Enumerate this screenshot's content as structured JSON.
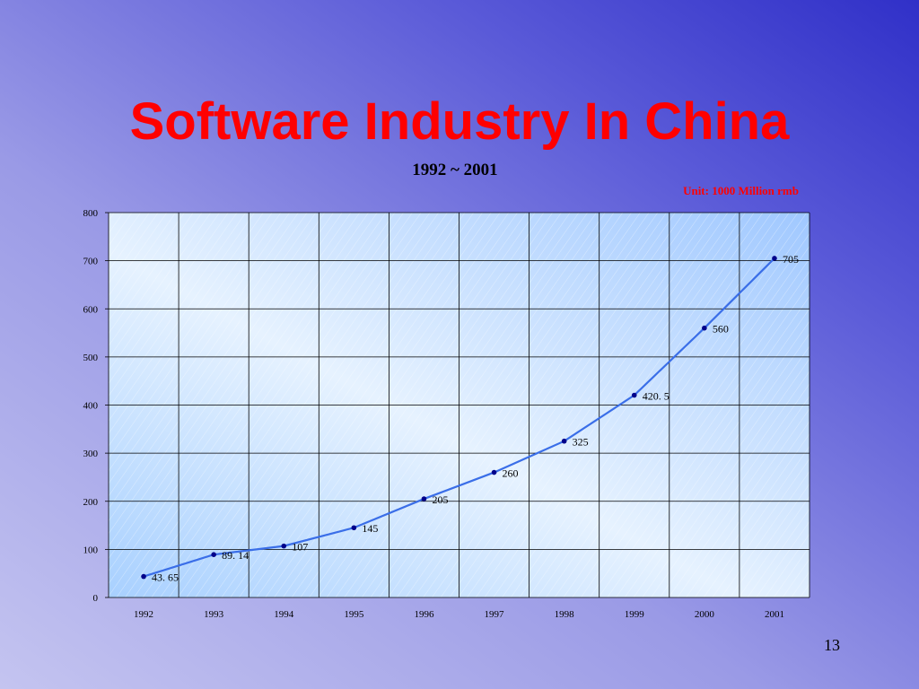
{
  "chart_data": {
    "type": "line",
    "title": "Software Industry In China",
    "subtitle": "1992 ~ 2001",
    "annotation": "Unit: 1000 Million  rmb",
    "page_number": "13",
    "categories": [
      "1992",
      "1993",
      "1994",
      "1995",
      "1996",
      "1997",
      "1998",
      "1999",
      "2000",
      "2001"
    ],
    "values": [
      43.65,
      89.14,
      107,
      145,
      205,
      260,
      325,
      420.5,
      560,
      705
    ],
    "value_labels": [
      "43. 65",
      "89. 14",
      "107",
      "145",
      "205",
      "260",
      "325",
      "420. 5",
      "560",
      "705"
    ],
    "color": "#3a6ee8",
    "marker_color": "#00008b",
    "ylim": [
      0,
      800
    ],
    "yticks": [
      0,
      100,
      200,
      300,
      400,
      500,
      600,
      700,
      800
    ],
    "grid": true
  }
}
